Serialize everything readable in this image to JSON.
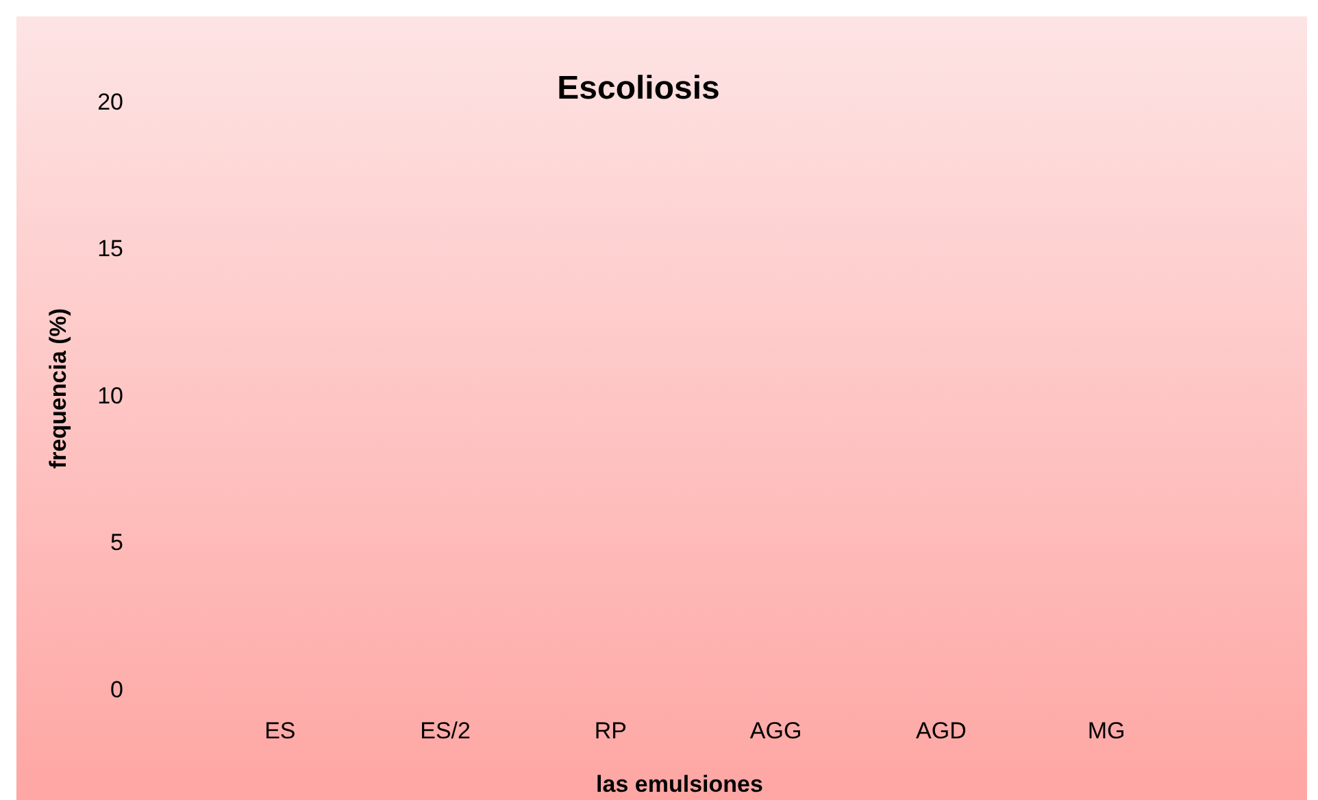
{
  "chart_data": {
    "type": "bar",
    "title": "Escoliosis",
    "xlabel": "las emulsiones",
    "ylabel": "frequencia (%)",
    "categories": [
      "ES",
      "ES/2",
      "RP",
      "AGG",
      "AGD",
      "MG"
    ],
    "values": [
      0,
      0,
      0,
      0,
      0,
      0
    ],
    "ylim": [
      0,
      20
    ],
    "yticks": [
      0,
      5,
      10,
      15,
      20
    ],
    "grid": false
  }
}
